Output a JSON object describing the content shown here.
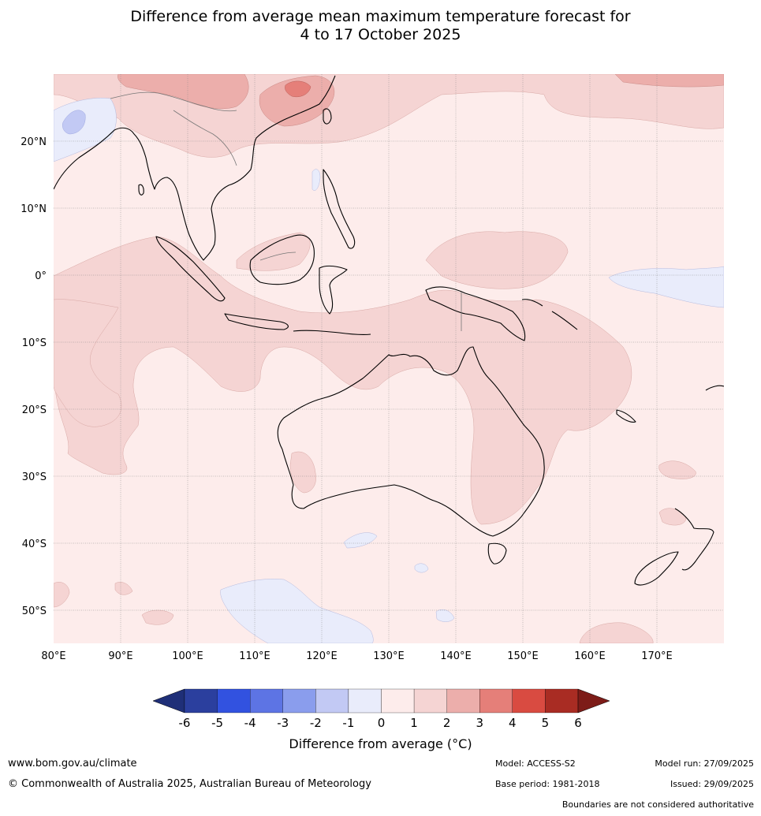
{
  "title": {
    "line1": "Difference from average mean maximum temperature forecast for",
    "line2": "4 to 17 October 2025"
  },
  "map": {
    "lon_labels": [
      "80°E",
      "90°E",
      "100°E",
      "110°E",
      "120°E",
      "130°E",
      "140°E",
      "150°E",
      "160°E",
      "170°E"
    ],
    "lat_labels": [
      "20°N",
      "10°N",
      "0°",
      "10°S",
      "20°S",
      "30°S",
      "40°S",
      "50°S"
    ]
  },
  "colorbar": {
    "ticks": [
      "-6",
      "-5",
      "-4",
      "-3",
      "-2",
      "-1",
      "0",
      "1",
      "2",
      "3",
      "4",
      "5",
      "6"
    ],
    "colors": [
      "#2b3f9e",
      "#3252e0",
      "#5d74e4",
      "#8a9ded",
      "#c2c9f4",
      "#e9ecfb",
      "#fdeceb",
      "#f5d4d3",
      "#ecaeab",
      "#e57f79",
      "#d94b41",
      "#a92c23"
    ],
    "extend_low": "#1f2f78",
    "extend_high": "#7d1c18",
    "label": "Difference from average (°C)"
  },
  "footer": {
    "website": "www.bom.gov.au/climate",
    "copyright": "© Commonwealth of Australia 2025, Australian Bureau of Meteorology",
    "model": "Model: ACCESS-S2",
    "model_run": "Model run: 27/09/2025",
    "base_period": "Base period: 1981-2018",
    "issued": "Issued: 29/09/2025",
    "boundaries": "Boundaries are not considered authoritative"
  }
}
